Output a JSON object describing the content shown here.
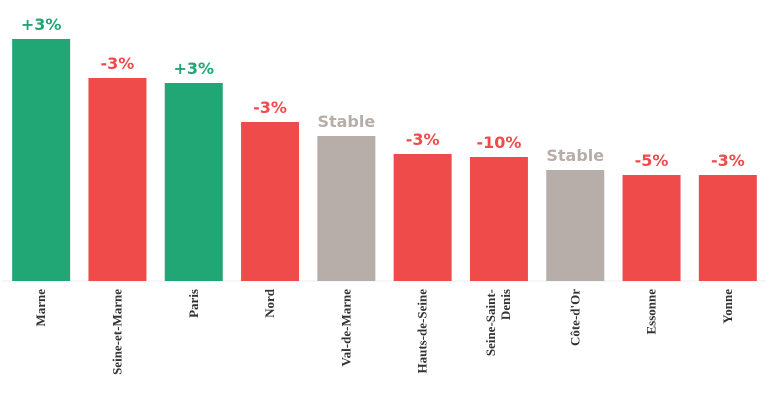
{
  "chart_data": {
    "type": "bar",
    "categories": [
      "Marne",
      "Seine-et-Marne",
      "Paris",
      "Nord",
      "Val-de-Marne",
      "Hauts-de-Seine",
      "Seine-Saint-Denis",
      "Côte-d'Or",
      "Essonne",
      "Yonne"
    ],
    "values": [
      242,
      203,
      198,
      159,
      145,
      127,
      124,
      111,
      106,
      106
    ],
    "annotations": [
      "+3%",
      "-3%",
      "+3%",
      "-3%",
      "Stable",
      "-3%",
      "-10%",
      "Stable",
      "-5%",
      "-3%"
    ],
    "colors": [
      "#21a675",
      "#ef4b4b",
      "#21a675",
      "#ef4b4b",
      "#b7aeaa",
      "#ef4b4b",
      "#ef4b4b",
      "#b7aeaa",
      "#ef4b4b",
      "#ef4b4b"
    ],
    "ylim": [
      0,
      250
    ]
  }
}
